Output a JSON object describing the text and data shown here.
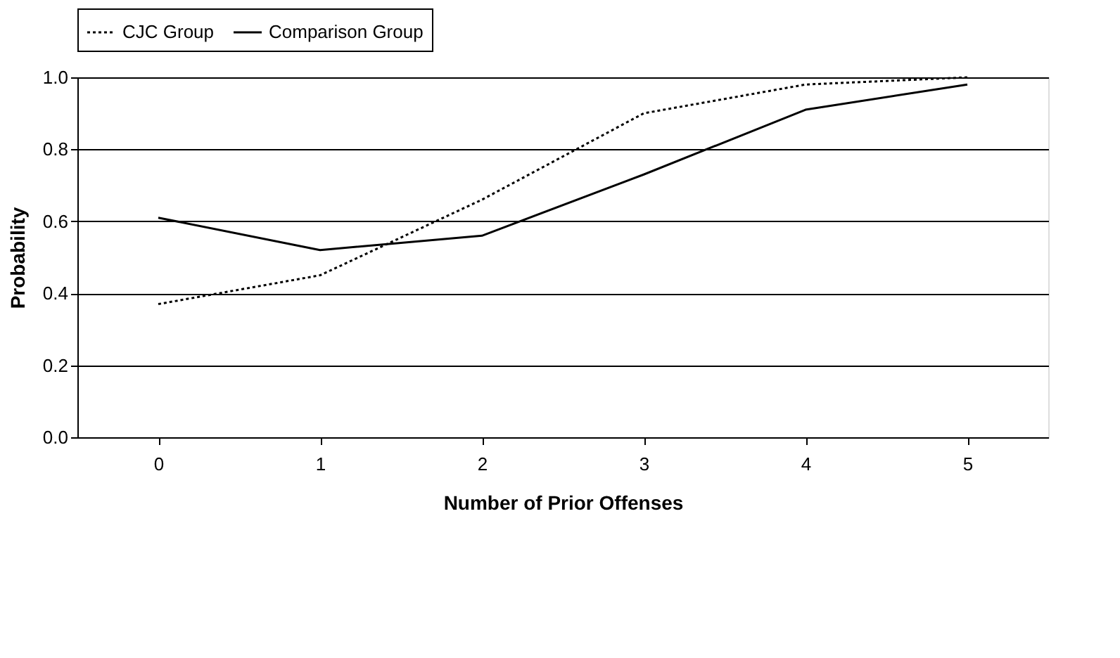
{
  "chart_data": {
    "type": "line",
    "xlabel": "Number of Prior Offenses",
    "ylabel": "Probability",
    "categories": [
      "0",
      "1",
      "2",
      "3",
      "4",
      "5"
    ],
    "series": [
      {
        "name": "CJC Group",
        "color": "#000000",
        "line_style": "dotted",
        "values": [
          0.37,
          0.45,
          0.66,
          0.9,
          0.98,
          1.0
        ]
      },
      {
        "name": "Comparison Group",
        "color": "#000000",
        "line_style": "solid",
        "values": [
          0.61,
          0.52,
          0.56,
          0.73,
          0.91,
          0.98
        ]
      }
    ],
    "ylim": [
      0,
      1
    ],
    "yticks": [
      {
        "value": 0,
        "label": "0.0"
      },
      0.2,
      0.4,
      0.6,
      0.8,
      {
        "value": 1,
        "label": "1.0"
      }
    ],
    "grid": "y",
    "legend": "top",
    "marker": "none"
  }
}
